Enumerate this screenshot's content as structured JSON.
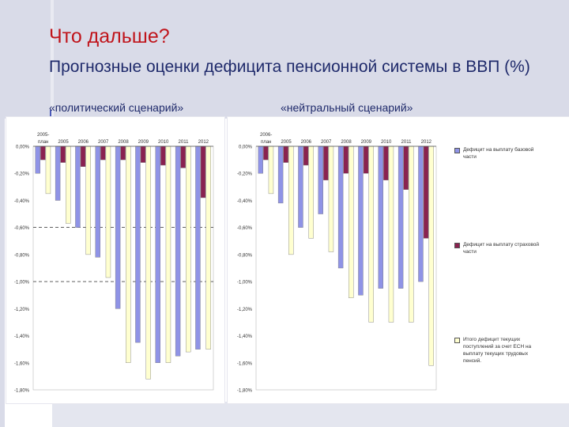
{
  "slide": {
    "title": "Что дальше?",
    "subtitle": "Прогнозные оценки дефицита пенсионной системы в ВВП (%)",
    "scenario_left": "«политический сценарий»",
    "scenario_right": "«нейтральный сценарий»"
  },
  "colors": {
    "title": "#c0141b",
    "text": "#1f2a6b",
    "series_base": "#8f93e6",
    "series_insurance": "#8a2250",
    "series_total": "#ffffd0",
    "grid_dashed": "#000000"
  },
  "chart_data": [
    {
      "type": "bar",
      "title": "",
      "categories": [
        "2005- план",
        "2005",
        "2006",
        "2007",
        "2008",
        "2009",
        "2010",
        "2011",
        "2012"
      ],
      "ylim": [
        -1.8,
        0
      ],
      "y_ticks": [
        "0,00%",
        "-0,20%",
        "-0,40%",
        "-0,60%",
        "-0,80%",
        "-1,00%",
        "-1,20%",
        "-1,40%",
        "-1,60%",
        "-1,80%"
      ],
      "y_tick_values": [
        0,
        -0.2,
        -0.4,
        -0.6,
        -0.8,
        -1.0,
        -1.2,
        -1.4,
        -1.6,
        -1.8
      ],
      "dashed_gridlines": [
        -0.6,
        -1.0
      ],
      "series": [
        {
          "name": "Дефицит на выплату базовой части",
          "color_key": "series_base",
          "values": [
            -0.2,
            -0.4,
            -0.6,
            -0.82,
            -1.2,
            -1.45,
            -1.6,
            -1.55,
            -1.5
          ]
        },
        {
          "name": "Дефицит на выплату страховой части",
          "color_key": "series_insurance",
          "values": [
            -0.1,
            -0.12,
            -0.15,
            -0.1,
            -0.1,
            -0.12,
            -0.14,
            -0.16,
            -0.38
          ]
        },
        {
          "name": "Итого дефицит текущих поступлений за счет ЕСН на выплату текущих трудовых пенсий.",
          "color_key": "series_total",
          "values": [
            -0.35,
            -0.57,
            -0.8,
            -0.97,
            -1.6,
            -1.72,
            -1.6,
            -1.52,
            -1.5
          ]
        }
      ]
    },
    {
      "type": "bar",
      "title": "",
      "categories": [
        "2006- план",
        "2005",
        "2006",
        "2007",
        "2008",
        "2009",
        "2010",
        "2011",
        "2012"
      ],
      "ylim": [
        -1.8,
        0
      ],
      "y_ticks": [
        "0,00%",
        "-0,20%",
        "-0,40%",
        "-0,60%",
        "-0,80%",
        "-1,00%",
        "-1,20%",
        "-1,40%",
        "-1,60%",
        "-1,80%"
      ],
      "y_tick_values": [
        0,
        -0.2,
        -0.4,
        -0.6,
        -0.8,
        -1.0,
        -1.2,
        -1.4,
        -1.6,
        -1.8
      ],
      "dashed_gridlines": [],
      "series": [
        {
          "name": "Дефицит на выплату базовой части",
          "color_key": "series_base",
          "values": [
            -0.2,
            -0.42,
            -0.6,
            -0.5,
            -0.9,
            -1.1,
            -1.05,
            -1.05,
            -1.0
          ]
        },
        {
          "name": "Дефицит на выплату страховой части",
          "color_key": "series_insurance",
          "values": [
            -0.1,
            -0.12,
            -0.14,
            -0.25,
            -0.2,
            -0.2,
            -0.25,
            -0.32,
            -0.68
          ]
        },
        {
          "name": "Итого дефицит текущих поступлений за счет ЕСН на выплату текущих трудовых пенсий.",
          "color_key": "series_total",
          "values": [
            -0.35,
            -0.8,
            -0.68,
            -0.78,
            -1.12,
            -1.3,
            -1.3,
            -1.3,
            -1.62
          ]
        }
      ]
    }
  ],
  "legend": {
    "items": [
      {
        "label": "Дефицит на выплату базовой части",
        "color_key": "series_base"
      },
      {
        "label": "Дефицит на выплату страховой части",
        "color_key": "series_insurance"
      },
      {
        "label": "Итого дефицит текущих поступлений за счет ЕСН на выплату текущих трудовых пенсий.",
        "color_key": "series_total"
      }
    ]
  }
}
